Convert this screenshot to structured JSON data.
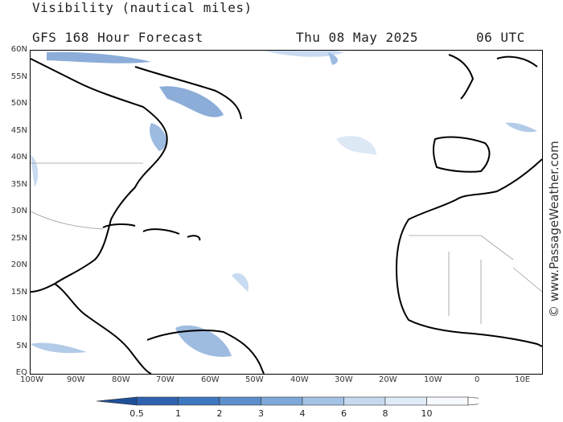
{
  "header": {
    "title": "Visibility (nautical miles)",
    "subtitle": "GFS 168 Hour Forecast",
    "date": "Thu 08 May 2025",
    "time": "06 UTC"
  },
  "axes": {
    "lat_labels": [
      "60N",
      "55N",
      "50N",
      "45N",
      "40N",
      "35N",
      "30N",
      "25N",
      "20N",
      "15N",
      "10N",
      "5N",
      "EQ"
    ],
    "lon_labels": [
      "100W",
      "90W",
      "80W",
      "70W",
      "60W",
      "50W",
      "40W",
      "30W",
      "20W",
      "10W",
      "0",
      "10E"
    ]
  },
  "legend": {
    "labels": [
      "0.5",
      "1",
      "2",
      "3",
      "4",
      "6",
      "8",
      "10"
    ],
    "colors": [
      "#2f62b0",
      "#3f77bf",
      "#5d8fcc",
      "#7ea8d9",
      "#a4c3e6",
      "#c6d9ef",
      "#e1ebf7",
      "#f6f9fd"
    ]
  },
  "copyright": "© www.PassageWeather.com"
}
